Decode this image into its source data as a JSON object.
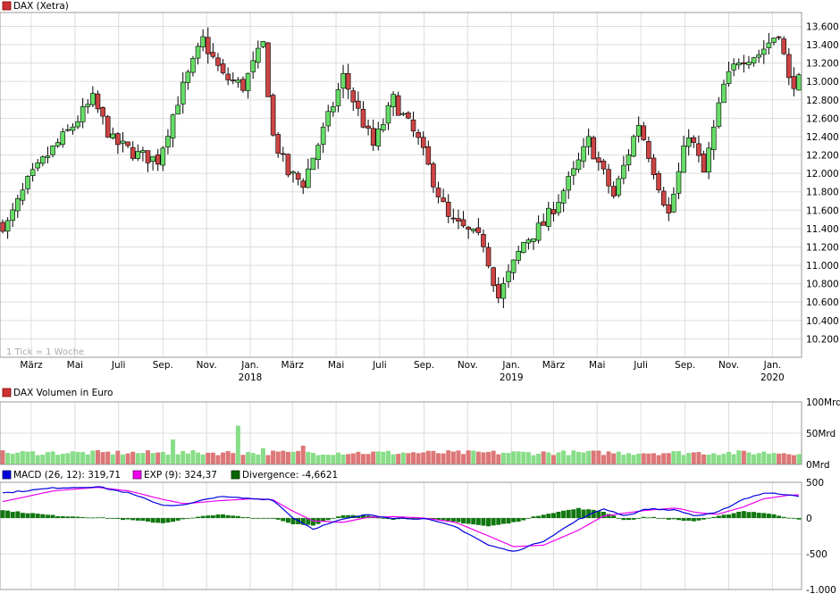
{
  "chart_data": [
    {
      "type": "candlestick",
      "legend": "DAX (Xetra)",
      "legend_color": "#cc3333",
      "note": "1 Tick = 1 Woche",
      "ylim": [
        10000,
        13750
      ],
      "yticks": [
        10200,
        10400,
        10600,
        10800,
        11000,
        11200,
        11400,
        11600,
        11800,
        12000,
        12200,
        12400,
        12600,
        12800,
        13000,
        13200,
        13400,
        13600
      ],
      "ytick_labels": [
        "10.200",
        "10.400",
        "10.600",
        "10.800",
        "11.000",
        "11.200",
        "11.400",
        "11.600",
        "11.800",
        "12.000",
        "12.200",
        "12.400",
        "12.600",
        "12.800",
        "13.000",
        "13.200",
        "13.400",
        "13.600"
      ],
      "up_color": "#66dd66",
      "down_color": "#cc4444",
      "ohlc_anchor": [
        [
          "2017-02-03",
          11450,
          11600
        ],
        [
          "2017-03-03",
          11900,
          12050
        ],
        [
          "2017-03-31",
          12200,
          12250
        ],
        [
          "2017-04-28",
          12450,
          12450
        ],
        [
          "2017-06-02",
          12800,
          12800
        ],
        [
          "2017-06-30",
          12350,
          12350
        ],
        [
          "2017-08-04",
          12200,
          12200
        ],
        [
          "2017-09-01",
          12150,
          12150
        ],
        [
          "2017-09-29",
          12800,
          12800
        ],
        [
          "2017-11-03",
          13450,
          13450
        ],
        [
          "2017-12-01",
          13050,
          13050
        ],
        [
          "2017-12-29",
          12950,
          12950
        ],
        [
          "2018-01-26",
          13400,
          13400
        ],
        [
          "2018-02-09",
          12400,
          12400
        ],
        [
          "2018-03-02",
          12000,
          12000
        ],
        [
          "2018-03-23",
          11900,
          11900
        ],
        [
          "2018-04-27",
          12600,
          12600
        ],
        [
          "2018-05-18",
          13050,
          13050
        ],
        [
          "2018-06-29",
          12300,
          12300
        ],
        [
          "2018-07-27",
          12800,
          12800
        ],
        [
          "2018-08-31",
          12350,
          12350
        ],
        [
          "2018-10-12",
          11500,
          11500
        ],
        [
          "2018-11-30",
          11250,
          11250
        ],
        [
          "2018-12-21",
          10650,
          10650
        ],
        [
          "2019-01-25",
          11250,
          11250
        ],
        [
          "2019-02-22",
          11450,
          11450
        ],
        [
          "2019-04-05",
          12000,
          12000
        ],
        [
          "2019-04-26",
          12350,
          12350
        ],
        [
          "2019-05-31",
          11750,
          11750
        ],
        [
          "2019-07-05",
          12550,
          12550
        ],
        [
          "2019-08-16",
          11550,
          11550
        ],
        [
          "2019-09-13",
          12450,
          12450
        ],
        [
          "2019-10-04",
          12000,
          12000
        ],
        [
          "2019-11-01",
          12950,
          12950
        ],
        [
          "2019-11-22",
          13250,
          13250
        ],
        [
          "2019-12-20",
          13300,
          13300
        ],
        [
          "2020-01-17",
          13550,
          13550
        ],
        [
          "2020-01-31",
          13000,
          13000
        ]
      ],
      "xticks": [
        {
          "label": "März",
          "date": "2017-03-01"
        },
        {
          "label": "Mai",
          "date": "2017-05-01"
        },
        {
          "label": "Juli",
          "date": "2017-07-01"
        },
        {
          "label": "Sep.",
          "date": "2017-09-01"
        },
        {
          "label": "Nov.",
          "date": "2017-11-01"
        },
        {
          "label": "Jan.",
          "date": "2018-01-01"
        },
        {
          "label": "März",
          "date": "2018-03-01"
        },
        {
          "label": "Mai",
          "date": "2018-05-01"
        },
        {
          "label": "Juli",
          "date": "2018-07-01"
        },
        {
          "label": "Sep.",
          "date": "2018-09-01"
        },
        {
          "label": "Nov.",
          "date": "2018-11-01"
        },
        {
          "label": "Jan.",
          "date": "2019-01-01"
        },
        {
          "label": "März",
          "date": "2019-03-01"
        },
        {
          "label": "Mai",
          "date": "2019-05-01"
        },
        {
          "label": "Juli",
          "date": "2019-07-01"
        },
        {
          "label": "Sep.",
          "date": "2019-09-01"
        },
        {
          "label": "Nov.",
          "date": "2019-11-01"
        },
        {
          "label": "Jan.",
          "date": "2020-01-01"
        }
      ],
      "year_labels": [
        {
          "label": "2018",
          "date": "2018-01-01"
        },
        {
          "label": "2019",
          "date": "2019-01-01"
        },
        {
          "label": "2020",
          "date": "2020-01-01"
        }
      ],
      "x_range": [
        "2017-01-20",
        "2020-02-07"
      ]
    },
    {
      "type": "bar",
      "legend": "DAX Volumen in Euro",
      "legend_color": "#cc3333",
      "ylim": [
        0,
        100
      ],
      "yticks": [
        0,
        50,
        100
      ],
      "ytick_labels": [
        "0Mrd",
        "50Mrd",
        "100Mrd"
      ],
      "baseline_mrd": 18,
      "spikes": [
        {
          "date": "2017-09-15",
          "value": 40
        },
        {
          "date": "2017-12-15",
          "value": 62
        },
        {
          "date": "2018-03-16",
          "value": 30
        },
        {
          "date": "2018-01-19",
          "value": 26
        }
      ]
    },
    {
      "type": "line",
      "legend": [
        {
          "label": "MACD (26, 12): 319,71",
          "color": "#0000dd"
        },
        {
          "label": "EXP (9): 324,37",
          "color": "#ee00ee"
        },
        {
          "label": "Divergence: -4,6621",
          "color": "#006600"
        }
      ],
      "ylim": [
        -1000,
        500
      ],
      "yticks": [
        -1000,
        -500,
        0,
        500
      ],
      "ytick_labels": [
        "-1.000",
        "-500",
        "0",
        "500"
      ],
      "macd_anchor": [
        [
          "2017-01-20",
          350
        ],
        [
          "2017-04-01",
          420
        ],
        [
          "2017-06-01",
          440
        ],
        [
          "2017-07-15",
          350
        ],
        [
          "2017-09-01",
          180
        ],
        [
          "2017-10-01",
          180
        ],
        [
          "2017-11-15",
          300
        ],
        [
          "2018-01-05",
          270
        ],
        [
          "2018-02-01",
          260
        ],
        [
          "2018-03-01",
          10
        ],
        [
          "2018-03-30",
          -150
        ],
        [
          "2018-05-10",
          -20
        ],
        [
          "2018-06-15",
          50
        ],
        [
          "2018-07-20",
          0
        ],
        [
          "2018-09-01",
          -10
        ],
        [
          "2018-10-15",
          -120
        ],
        [
          "2018-11-30",
          -380
        ],
        [
          "2019-01-04",
          -470
        ],
        [
          "2019-02-15",
          -320
        ],
        [
          "2019-04-05",
          -20
        ],
        [
          "2019-05-10",
          130
        ],
        [
          "2019-06-10",
          30
        ],
        [
          "2019-07-10",
          130
        ],
        [
          "2019-08-20",
          110
        ],
        [
          "2019-09-15",
          30
        ],
        [
          "2019-10-15",
          70
        ],
        [
          "2019-11-20",
          260
        ],
        [
          "2019-12-20",
          350
        ],
        [
          "2020-01-24",
          330
        ],
        [
          "2020-02-07",
          310
        ]
      ],
      "signal_anchor": [
        [
          "2017-01-20",
          230
        ],
        [
          "2017-04-01",
          380
        ],
        [
          "2017-06-01",
          430
        ],
        [
          "2017-07-15",
          380
        ],
        [
          "2017-09-01",
          260
        ],
        [
          "2017-10-01",
          200
        ],
        [
          "2017-11-15",
          240
        ],
        [
          "2018-01-05",
          270
        ],
        [
          "2018-02-01",
          260
        ],
        [
          "2018-03-01",
          100
        ],
        [
          "2018-03-30",
          -40
        ],
        [
          "2018-05-10",
          -60
        ],
        [
          "2018-06-15",
          10
        ],
        [
          "2018-07-20",
          20
        ],
        [
          "2018-09-01",
          0
        ],
        [
          "2018-10-15",
          -60
        ],
        [
          "2018-11-30",
          -250
        ],
        [
          "2019-01-04",
          -400
        ],
        [
          "2019-02-15",
          -380
        ],
        [
          "2019-04-05",
          -170
        ],
        [
          "2019-05-10",
          30
        ],
        [
          "2019-06-10",
          70
        ],
        [
          "2019-07-10",
          110
        ],
        [
          "2019-08-20",
          140
        ],
        [
          "2019-09-15",
          80
        ],
        [
          "2019-10-15",
          50
        ],
        [
          "2019-11-20",
          150
        ],
        [
          "2019-12-20",
          270
        ],
        [
          "2020-01-24",
          320
        ],
        [
          "2020-02-07",
          325
        ]
      ]
    }
  ]
}
